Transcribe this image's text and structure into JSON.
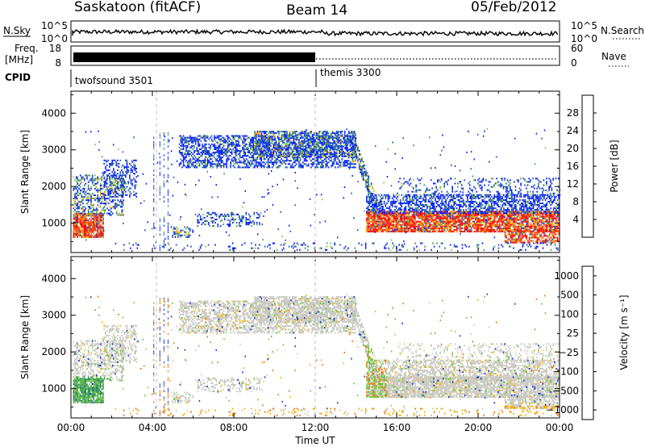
{
  "header": {
    "title": "Saskatoon (fitACF)",
    "beam": "Beam 14",
    "date": "05/Feb/2012"
  },
  "top_panels": {
    "nsky_label": "N.Sky",
    "nsky_ticks": [
      "10^5",
      "10^0"
    ],
    "nsearch_label": "N.Search",
    "nsearch_ticks": [
      "10^5",
      "10^0"
    ],
    "freq_label": "Freq.",
    "freq_unit": "[MHz]",
    "freq_ticks": [
      "18",
      "8"
    ],
    "nave_label": "Nave",
    "nave_ticks": [
      "60",
      "0"
    ],
    "cpid_label": "CPID",
    "cpid_entries": [
      {
        "name": "twofsound 3501",
        "start": "00:00"
      },
      {
        "name": "themis 3300",
        "start": "12:00"
      }
    ]
  },
  "chart_data": [
    {
      "type": "heatmap",
      "panel": "power",
      "ylabel": "Slant Range [km]",
      "yticks": [
        1000,
        2000,
        3000,
        4000
      ],
      "ylim": [
        200,
        4600
      ],
      "colorbar": {
        "label": "Power [dB]",
        "ticks": [
          4,
          8,
          12,
          16,
          20,
          24,
          28
        ],
        "colors": [
          "#0019ff",
          "#1f4fbf",
          "#3f8f6f",
          "#7fc23f",
          "#e5d21a",
          "#f5a300",
          "#ff6a00",
          "#ff0000"
        ]
      }
    },
    {
      "type": "heatmap",
      "panel": "velocity",
      "ylabel": "Slant Range [km]",
      "yticks": [
        1000,
        2000,
        3000,
        4000
      ],
      "ylim": [
        200,
        4600
      ],
      "xlabel": "Time UT",
      "xticks": [
        "00:00",
        "04:00",
        "08:00",
        "12:00",
        "16:00",
        "20:00",
        "00:00"
      ],
      "colorbar": {
        "label": "Velocity [m s⁻¹]",
        "ticks": [
          "1000",
          "500",
          "100",
          "25",
          "−25",
          "−100",
          "−500",
          "−1000"
        ],
        "colors": [
          "#1030c8",
          "#2e6fa8",
          "#2e8f5a",
          "#6cc23a",
          "#c8c8c0",
          "#f0b000",
          "#f07000",
          "#e01010"
        ]
      }
    }
  ]
}
